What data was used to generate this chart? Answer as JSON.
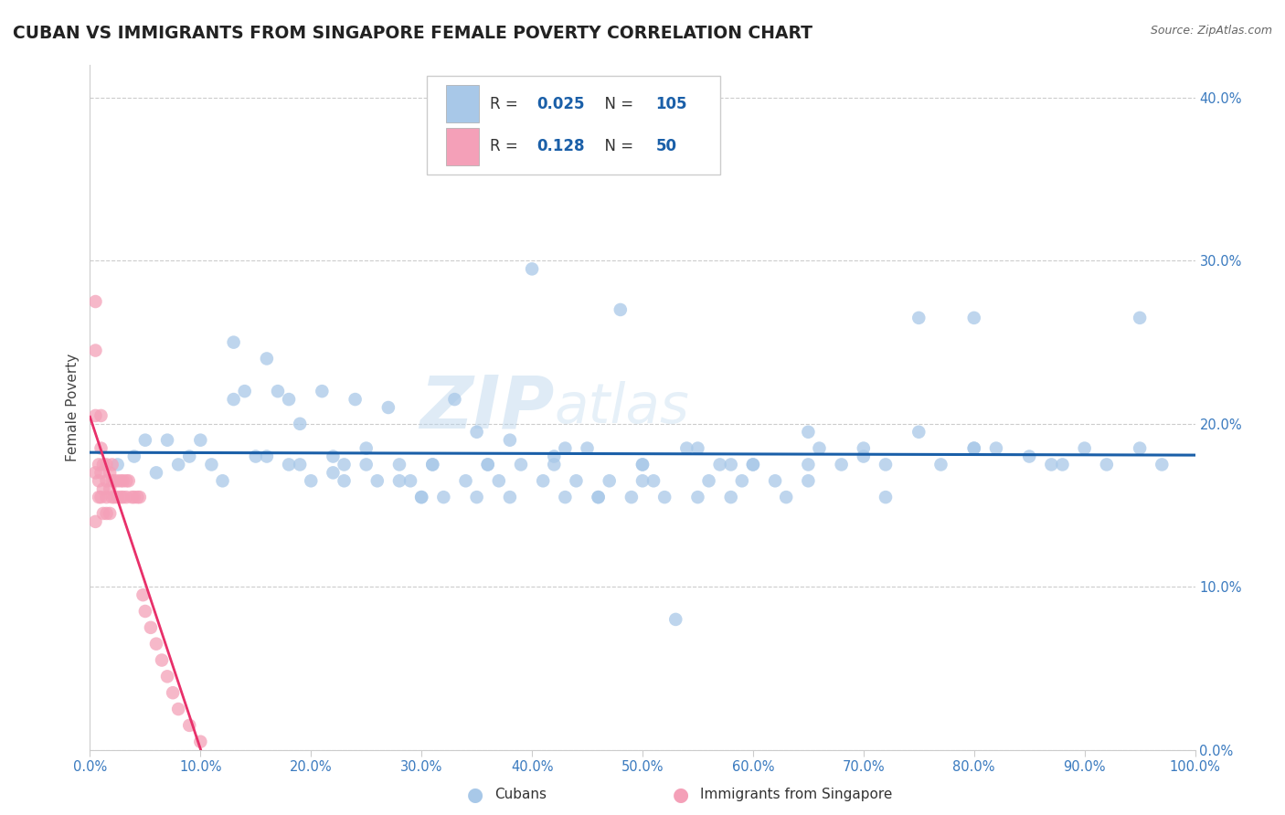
{
  "title": "CUBAN VS IMMIGRANTS FROM SINGAPORE FEMALE POVERTY CORRELATION CHART",
  "source_text": "Source: ZipAtlas.com",
  "ylabel": "Female Poverty",
  "watermark_zip": "ZIP",
  "watermark_atlas": "atlas",
  "xlim": [
    0.0,
    1.0
  ],
  "ylim": [
    0.0,
    0.42
  ],
  "xticks": [
    0.0,
    0.1,
    0.2,
    0.3,
    0.4,
    0.5,
    0.6,
    0.7,
    0.8,
    0.9,
    1.0
  ],
  "yticks": [
    0.0,
    0.1,
    0.2,
    0.3,
    0.4
  ],
  "blue_color": "#a8c8e8",
  "pink_color": "#f4a0b8",
  "regression_blue_color": "#1a5fa8",
  "regression_pink_color": "#e8306a",
  "regression_pink_dashed_color": "#e8a0b0",
  "background_color": "#ffffff",
  "grid_color": "#cccccc",
  "title_color": "#222222",
  "tick_label_color": "#3a7abf",
  "legend_R_N_color": "#1a5fa8",
  "legend_label_color": "#333333",
  "blue_label": "Cubans",
  "pink_label": "Immigrants from Singapore",
  "blue_R": "0.025",
  "blue_N": "105",
  "pink_R": "0.128",
  "pink_N": "50",
  "blue_scatter_x": [
    0.025,
    0.04,
    0.05,
    0.06,
    0.07,
    0.08,
    0.09,
    0.1,
    0.11,
    0.12,
    0.13,
    0.14,
    0.15,
    0.16,
    0.17,
    0.18,
    0.19,
    0.2,
    0.21,
    0.22,
    0.23,
    0.24,
    0.25,
    0.26,
    0.27,
    0.28,
    0.29,
    0.3,
    0.31,
    0.32,
    0.33,
    0.34,
    0.35,
    0.36,
    0.37,
    0.38,
    0.39,
    0.4,
    0.41,
    0.42,
    0.43,
    0.44,
    0.45,
    0.46,
    0.47,
    0.48,
    0.49,
    0.5,
    0.51,
    0.52,
    0.53,
    0.54,
    0.55,
    0.56,
    0.57,
    0.58,
    0.59,
    0.6,
    0.62,
    0.63,
    0.65,
    0.66,
    0.68,
    0.7,
    0.72,
    0.75,
    0.77,
    0.8,
    0.82,
    0.85,
    0.87,
    0.9,
    0.92,
    0.95,
    0.97,
    0.13,
    0.16,
    0.19,
    0.22,
    0.25,
    0.28,
    0.31,
    0.35,
    0.38,
    0.42,
    0.46,
    0.5,
    0.55,
    0.6,
    0.65,
    0.7,
    0.75,
    0.8,
    0.18,
    0.23,
    0.3,
    0.36,
    0.43,
    0.5,
    0.58,
    0.65,
    0.72,
    0.8,
    0.88,
    0.95
  ],
  "blue_scatter_y": [
    0.175,
    0.18,
    0.19,
    0.17,
    0.19,
    0.175,
    0.18,
    0.19,
    0.175,
    0.165,
    0.215,
    0.22,
    0.18,
    0.24,
    0.22,
    0.215,
    0.2,
    0.165,
    0.22,
    0.18,
    0.175,
    0.215,
    0.175,
    0.165,
    0.21,
    0.175,
    0.165,
    0.155,
    0.175,
    0.155,
    0.215,
    0.165,
    0.155,
    0.175,
    0.165,
    0.155,
    0.175,
    0.295,
    0.165,
    0.175,
    0.155,
    0.165,
    0.185,
    0.155,
    0.165,
    0.27,
    0.155,
    0.175,
    0.165,
    0.155,
    0.08,
    0.185,
    0.155,
    0.165,
    0.175,
    0.155,
    0.165,
    0.175,
    0.165,
    0.155,
    0.175,
    0.185,
    0.175,
    0.18,
    0.155,
    0.265,
    0.175,
    0.265,
    0.185,
    0.18,
    0.175,
    0.185,
    0.175,
    0.265,
    0.175,
    0.25,
    0.18,
    0.175,
    0.17,
    0.185,
    0.165,
    0.175,
    0.195,
    0.19,
    0.18,
    0.155,
    0.175,
    0.185,
    0.175,
    0.195,
    0.185,
    0.195,
    0.185,
    0.175,
    0.165,
    0.155,
    0.175,
    0.185,
    0.165,
    0.175,
    0.165,
    0.175,
    0.185,
    0.175,
    0.185
  ],
  "pink_scatter_x": [
    0.005,
    0.005,
    0.005,
    0.005,
    0.005,
    0.008,
    0.008,
    0.008,
    0.01,
    0.01,
    0.01,
    0.01,
    0.012,
    0.012,
    0.012,
    0.015,
    0.015,
    0.015,
    0.015,
    0.018,
    0.018,
    0.018,
    0.02,
    0.02,
    0.02,
    0.022,
    0.022,
    0.025,
    0.025,
    0.028,
    0.028,
    0.03,
    0.03,
    0.033,
    0.033,
    0.035,
    0.038,
    0.04,
    0.043,
    0.045,
    0.048,
    0.05,
    0.055,
    0.06,
    0.065,
    0.07,
    0.075,
    0.08,
    0.09,
    0.1
  ],
  "pink_scatter_y": [
    0.275,
    0.245,
    0.205,
    0.17,
    0.14,
    0.175,
    0.165,
    0.155,
    0.205,
    0.185,
    0.17,
    0.155,
    0.175,
    0.16,
    0.145,
    0.175,
    0.165,
    0.155,
    0.145,
    0.17,
    0.16,
    0.145,
    0.175,
    0.165,
    0.155,
    0.165,
    0.155,
    0.165,
    0.155,
    0.165,
    0.155,
    0.165,
    0.155,
    0.165,
    0.155,
    0.165,
    0.155,
    0.155,
    0.155,
    0.155,
    0.095,
    0.085,
    0.075,
    0.065,
    0.055,
    0.045,
    0.035,
    0.025,
    0.015,
    0.005
  ]
}
